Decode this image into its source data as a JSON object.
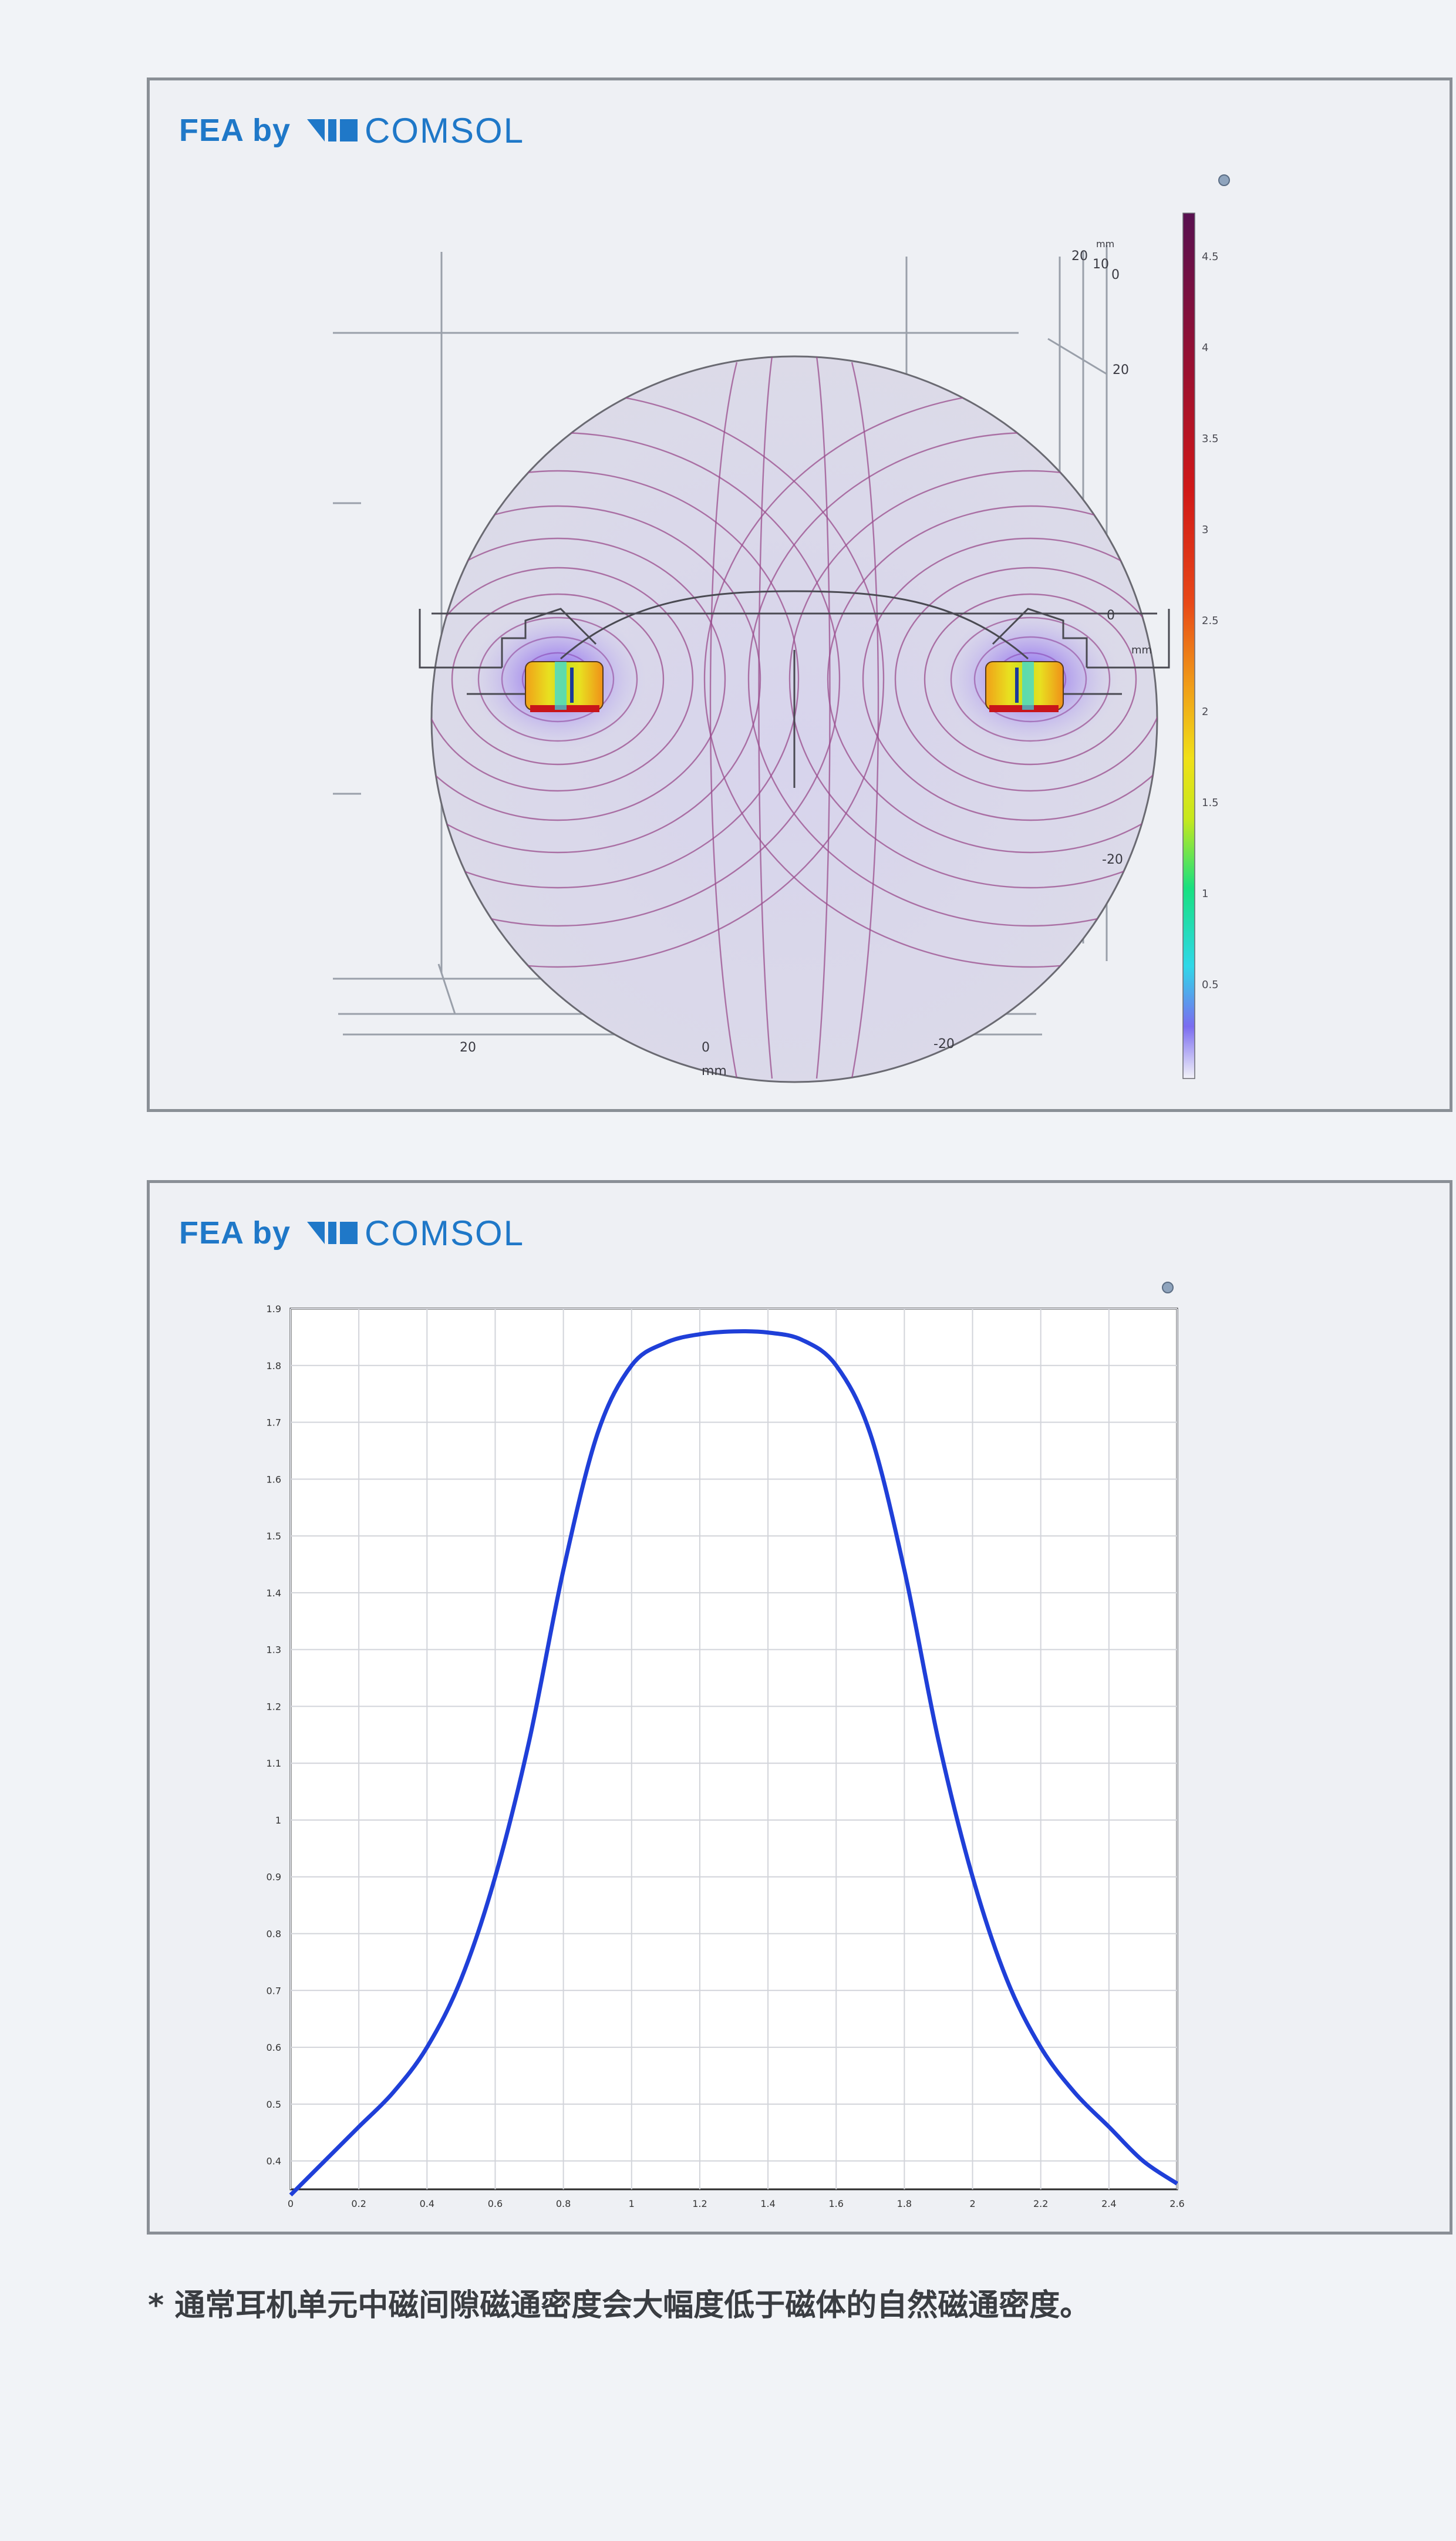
{
  "brand": {
    "prefix": "FEA by",
    "name": "COMSOL",
    "color": "#1f78c8"
  },
  "fea_plot": {
    "axis_unit": "mm",
    "x_ticks": [
      "20",
      "0",
      "-20"
    ],
    "y_ticks": [
      "20",
      "0",
      "-20"
    ],
    "z_ticks": [
      "20",
      "10",
      "0"
    ],
    "colorbar": {
      "colormap": "rainbow",
      "ticks": [
        "4.5",
        "4",
        "3.5",
        "3",
        "2.5",
        "2",
        "1.5",
        "1",
        "0.5"
      ]
    }
  },
  "chart_data": {
    "type": "line",
    "title": "",
    "xlabel": "",
    "ylabel": "",
    "xlim": [
      0,
      2.6
    ],
    "ylim": [
      0.35,
      1.9
    ],
    "x_ticks": [
      "0",
      "0.2",
      "0.4",
      "0.6",
      "0.8",
      "1",
      "1.2",
      "1.4",
      "1.6",
      "1.8",
      "2",
      "2.2",
      "2.4",
      "2.6"
    ],
    "y_ticks": [
      "0.4",
      "0.5",
      "0.6",
      "0.7",
      "0.8",
      "0.9",
      "1",
      "1.1",
      "1.2",
      "1.3",
      "1.4",
      "1.5",
      "1.6",
      "1.7",
      "1.8",
      "1.9"
    ],
    "grid": true,
    "series": [
      {
        "color": "#1f3fd8",
        "x": [
          0,
          0.1,
          0.2,
          0.3,
          0.4,
          0.5,
          0.6,
          0.7,
          0.8,
          0.9,
          1.0,
          1.1,
          1.2,
          1.3,
          1.4,
          1.5,
          1.6,
          1.7,
          1.8,
          1.9,
          2.0,
          2.1,
          2.2,
          2.3,
          2.4,
          2.5,
          2.6
        ],
        "y": [
          0.34,
          0.4,
          0.46,
          0.52,
          0.6,
          0.72,
          0.9,
          1.14,
          1.44,
          1.68,
          1.8,
          1.84,
          1.855,
          1.86,
          1.858,
          1.845,
          1.8,
          1.68,
          1.44,
          1.14,
          0.9,
          0.72,
          0.6,
          0.52,
          0.46,
          0.4,
          0.36
        ]
      }
    ]
  },
  "footnote": "* 通常耳机单元中磁间隙磁通密度会大幅度低于磁体的自然磁通密度。"
}
